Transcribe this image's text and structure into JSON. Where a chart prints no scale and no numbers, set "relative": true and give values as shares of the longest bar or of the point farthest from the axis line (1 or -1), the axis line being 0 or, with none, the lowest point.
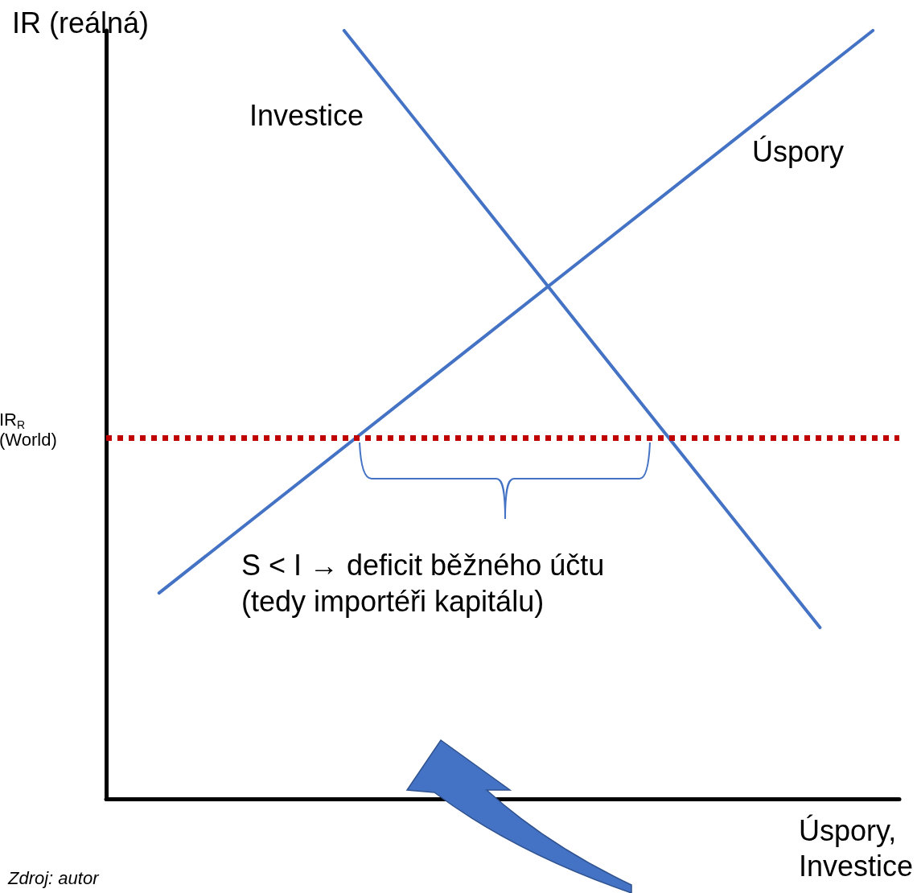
{
  "chart_data": {
    "type": "line",
    "relative": true,
    "ylabel": "IR (reálná)",
    "xlabel": "Úspory,\nInvestice",
    "categories": [
      null,
      null,
      null,
      null,
      null,
      null,
      null,
      null,
      null,
      null,
      null,
      null,
      null,
      null,
      null,
      null,
      null,
      null,
      null,
      null,
      null,
      null,
      null,
      null,
      null,
      null,
      null,
      null,
      null,
      null,
      null
    ],
    "series": [
      {
        "name": "Investice",
        "color": "#4472c4",
        "values": [
          null,
          null,
          null,
          null,
          null,
          null,
          null,
          null,
          null,
          1,
          null,
          null,
          null,
          null,
          null,
          null,
          null,
          null,
          null,
          null,
          null,
          null,
          null,
          null,
          null,
          null,
          null,
          0.223,
          null,
          null,
          null
        ],
        "line_style": "solid"
      },
      {
        "name": "Úspory",
        "color": "#4472c4",
        "values": [
          null,
          null,
          0.268,
          null,
          null,
          null,
          null,
          null,
          null,
          null,
          null,
          null,
          null,
          null,
          null,
          null,
          null,
          null,
          null,
          null,
          null,
          null,
          null,
          null,
          null,
          null,
          null,
          null,
          null,
          1,
          null
        ],
        "line_style": "solid"
      }
    ],
    "ref_lines": [
      {
        "axis": "y",
        "value": 0.471,
        "label": "IR$_{R}$\n(World)",
        "color": "#c00000",
        "line_style": "dotted"
      }
    ],
    "annotations": [
      "S < I → deficit běžného účtu\n(tedy importéři kapitálu)",
      "Zdroj: autor"
    ],
    "legend": false,
    "grid": false,
    "marker": "none"
  }
}
